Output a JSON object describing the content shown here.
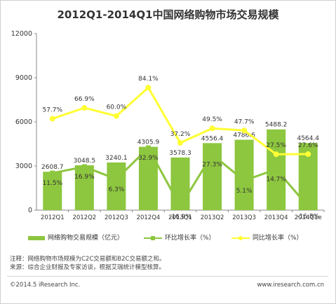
{
  "chart_data": {
    "type": "bar",
    "title": "2012Q1-2014Q1中国网络购物市场交易规模",
    "categories": [
      "2012Q1",
      "2012Q2",
      "2012Q3",
      "2012Q4",
      "2013Q1",
      "2013Q2",
      "2013Q3",
      "2013Q4",
      "2014Q1e"
    ],
    "ylim": [
      0,
      12000
    ],
    "yticks": [
      "0",
      "3000",
      "6000",
      "9000",
      "12000"
    ],
    "series": [
      {
        "name": "网络购物交易规模（亿元）",
        "type": "bar",
        "values": [
          2608.7,
          3048.5,
          3240.1,
          4305.9,
          3578.3,
          4556.4,
          4786.6,
          5488.2,
          4564.4
        ],
        "labels": [
          "2608.7",
          "3048.5",
          "3240.1",
          "4305.9",
          "3578.3",
          "4556.4",
          "4786.6",
          "5488.2",
          "4564.4"
        ],
        "color": "#8dc63f"
      },
      {
        "name": "环比增长率（%）",
        "type": "line",
        "values": [
          11.5,
          16.9,
          6.3,
          32.9,
          -16.9,
          27.3,
          5.1,
          14.7,
          -16.8
        ],
        "labels": [
          "11.5%",
          "16.9%",
          "6.3%",
          "32.9%",
          "-16.9%",
          "27.3%",
          "5.1%",
          "14.7%",
          "-16.8%"
        ],
        "color": "#8dc63f"
      },
      {
        "name": "同比增长率（%）",
        "type": "line",
        "values": [
          57.7,
          66.9,
          60.0,
          84.1,
          37.2,
          49.5,
          47.7,
          27.5,
          27.6
        ],
        "labels": [
          "57.7%",
          "66.9%",
          "60.0%",
          "84.1%",
          "37.2%",
          "49.5%",
          "47.7%",
          "27.5%",
          "27.6%"
        ],
        "color": "#ffff33"
      }
    ],
    "grid": false,
    "legend": "bottom"
  },
  "legend": {
    "bar_label": "网络购物交易规模（亿元）",
    "mom_label": "环比增长率（%）",
    "yoy_label": "同比增长率（%）"
  },
  "notes": {
    "line1": "注释：网络购物市场规模为C2C交易额和B2C交易额之和。",
    "line2": "来源：综合企业财报及专家访谈，根据艾瑞统计模型核算。"
  },
  "footer": {
    "copyright": "©2014.5 iResearch Inc.",
    "website": "www.iresearch.com.cn"
  }
}
